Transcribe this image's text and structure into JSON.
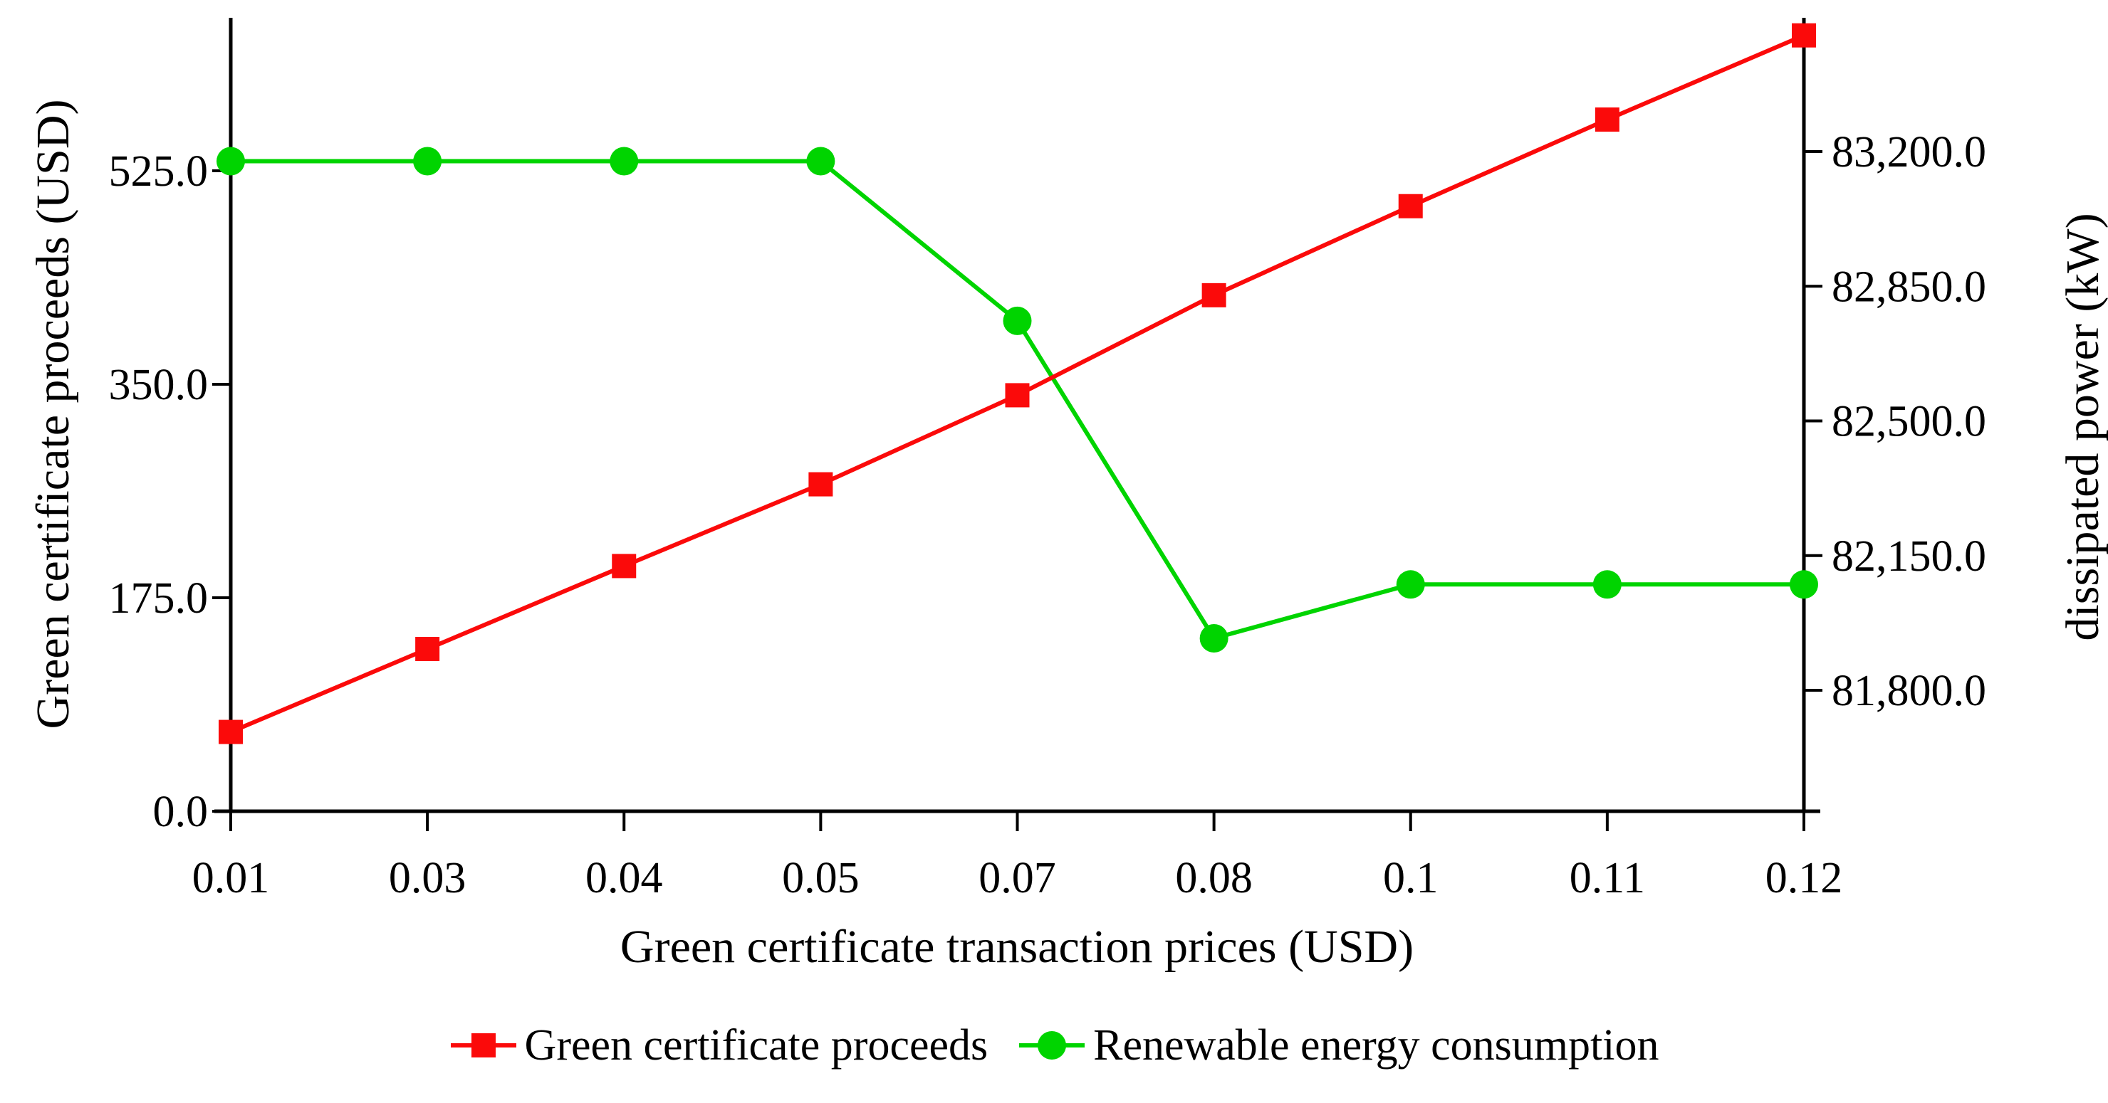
{
  "figure": {
    "background": "#ffffff",
    "text_color": "#000000"
  },
  "chart_data": {
    "type": "line",
    "title": "",
    "x_categories": [
      "0.01",
      "0.03",
      "0.04",
      "0.05",
      "0.07",
      "0.08",
      "0.1",
      "0.11",
      "0.12"
    ],
    "xlabel": "Green certificate transaction prices (USD)",
    "grid": false,
    "legend_position": "bottom-center",
    "left_axis": {
      "label": "Green certificate proceeds (USD)",
      "tick_labels": [
        "0.0",
        "175.0",
        "350.0",
        "525.0"
      ],
      "tick_values": [
        0,
        175,
        350,
        525
      ],
      "min": 0,
      "max": 650
    },
    "right_axis": {
      "label": "dissipated power (kW)",
      "tick_labels": [
        "83,200.0",
        "82,850.0",
        "82,500.0",
        "82,150.0",
        "81,800.0"
      ],
      "tick_values": [
        83200,
        82850,
        82500,
        82150,
        81800
      ],
      "min": 81500,
      "max": 83550
    },
    "series": [
      {
        "name": "Green certificate proceeds",
        "axis": "left",
        "color": "#fb0a0a",
        "marker": "square",
        "values": [
          65,
          133,
          201,
          268,
          341,
          423,
          496,
          567,
          636
        ]
      },
      {
        "name": "Renewable energy consumption",
        "axis": "right",
        "color": "#00d400",
        "marker": "circle",
        "values": [
          83175,
          83175,
          83175,
          83175,
          82760,
          81935,
          82075,
          82075,
          82075
        ]
      }
    ]
  },
  "legend": {
    "items": [
      {
        "label": "Green certificate proceeds",
        "marker": "square",
        "color": "#fb0a0a"
      },
      {
        "label": "Renewable energy consumption",
        "marker": "circle",
        "color": "#00d400"
      }
    ]
  }
}
